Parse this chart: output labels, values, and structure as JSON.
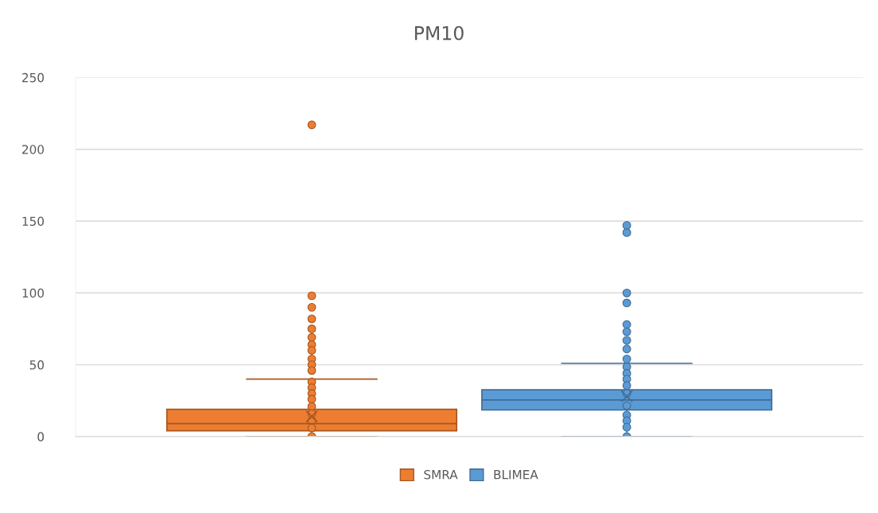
{
  "chart_data": {
    "type": "box",
    "title": "PM10",
    "categories": [
      null
    ],
    "series": [
      {
        "name": "SMRA",
        "color": "#ed7d31",
        "boxes": [
          {
            "low": 0,
            "q1": 4,
            "median": 9,
            "q3": 19,
            "high": 40,
            "mean": 14,
            "outliers": [
              217,
              98,
              90,
              82,
              75,
              69,
              64,
              60,
              54,
              50,
              46,
              38,
              34,
              30,
              26,
              21,
              16,
              11,
              6,
              0
            ]
          }
        ]
      },
      {
        "name": "BLIMEA",
        "color": "#5b9bd5",
        "boxes": [
          {
            "low": 0,
            "q1": 18.5,
            "median": 25.5,
            "q3": 32.5,
            "high": 51,
            "mean": 28,
            "outliers": [
              147,
              142,
              100,
              93,
              78,
              73,
              67,
              61,
              54,
              48.5,
              44,
              40,
              35.5,
              30,
              21.5,
              15,
              11,
              6.5,
              0
            ]
          }
        ]
      }
    ],
    "ylim": [
      0,
      250
    ],
    "yticks": [
      0,
      50,
      100,
      150,
      200,
      250
    ],
    "grid": "y",
    "legend": "bottom"
  }
}
